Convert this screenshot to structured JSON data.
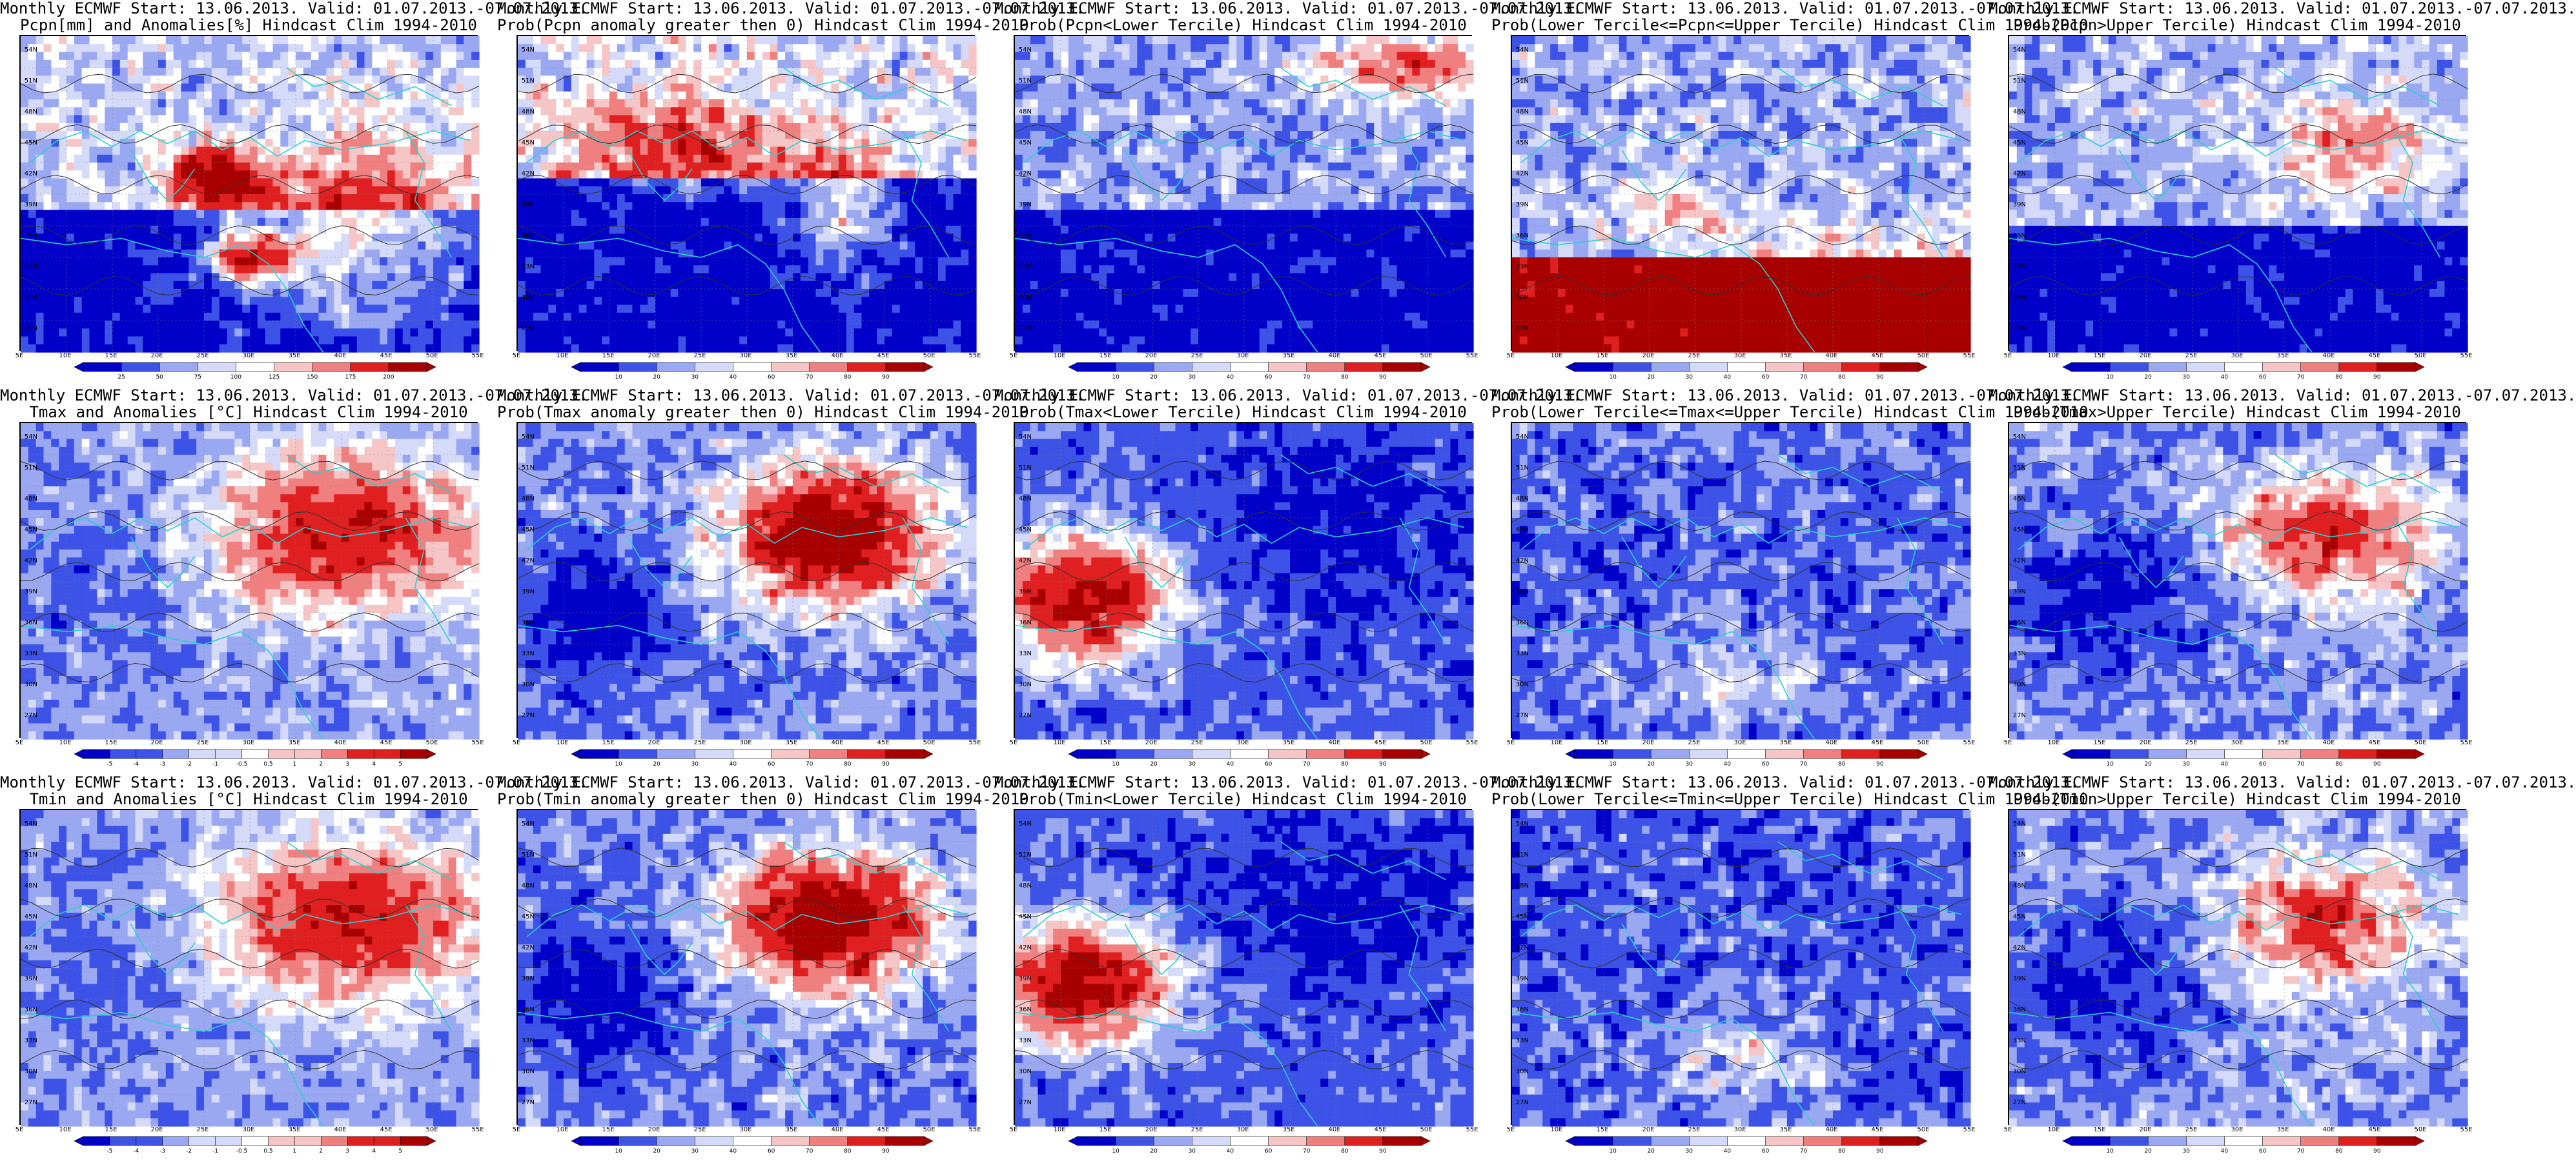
{
  "colors": {
    "blue_dark": "#0000c8",
    "blue_mid": "#3d52e6",
    "blue_light": "#9aa8f2",
    "blue_pale": "#d4daf8",
    "white": "#ffffff",
    "red_pale": "#f6c6c6",
    "red_light": "#f08080",
    "red_mid": "#e02020",
    "red_dark": "#a80000",
    "coast": "#29d0d0",
    "contour": "#303030"
  },
  "axes": {
    "lat_labels": [
      "54N",
      "51N",
      "48N",
      "45N",
      "42N",
      "39N",
      "36N",
      "33N",
      "30N",
      "27N"
    ],
    "lon_labels": [
      "5E",
      "10E",
      "15E",
      "20E",
      "25E",
      "30E",
      "35E",
      "40E",
      "45E",
      "50E",
      "55E"
    ]
  },
  "colorbars": {
    "pcpn_anom": [
      "25",
      "50",
      "75",
      "100",
      "125",
      "150",
      "175",
      "200"
    ],
    "temp_anom": [
      "-5",
      "-4",
      "-3",
      "-2",
      "-1",
      "-0.5",
      "0.5",
      "1",
      "2",
      "3",
      "4",
      "5"
    ],
    "prob": [
      "10",
      "20",
      "30",
      "40",
      "60",
      "70",
      "80",
      "90"
    ]
  },
  "panels": [
    {
      "id": "r1c1",
      "title1": "Monthly ECMWF Start: 13.06.2013. Valid: 01.07.2013.-07.07.2013.",
      "title2": "Pcpn[mm] and Anomalies[%] Hindcast Clim 1994-2010",
      "cbar": "pcpn_anom",
      "style": "pcpn_anom"
    },
    {
      "id": "r1c2",
      "title1": "Monthly ECMWF Start: 13.06.2013. Valid: 01.07.2013.-07.07.2013.",
      "title2": "Prob(Pcpn anomaly greater then 0) Hindcast Clim 1994-2010",
      "cbar": "prob",
      "style": "pcpn_pos"
    },
    {
      "id": "r1c3",
      "title1": "Monthly ECMWF Start: 13.06.2013. Valid: 01.07.2013.-07.07.2013.",
      "title2": "Prob(Pcpn<Lower Tercile) Hindcast Clim 1994-2010",
      "cbar": "prob",
      "style": "pcpn_low"
    },
    {
      "id": "r1c4",
      "title1": "Monthly ECMWF Start: 13.06.2013. Valid: 01.07.2013.-07.07.2013.",
      "title2": "Prob(Lower Tercile<=Pcpn<=Upper Tercile) Hindcast Clim 1994-2010",
      "cbar": "prob",
      "style": "pcpn_mid"
    },
    {
      "id": "r1c5",
      "title1": "Monthly ECMWF Start: 13.06.2013. Valid: 01.07.2013.-07.07.2013.",
      "title2": "Prob(Pcpn>Upper Tercile) Hindcast Clim 1994-2010",
      "cbar": "prob",
      "style": "pcpn_up"
    },
    {
      "id": "r2c1",
      "title1": "Monthly ECMWF Start: 13.06.2013. Valid: 01.07.2013.-07.07.2013.",
      "title2": "Tmax and Anomalies [°C] Hindcast Clim 1994-2010",
      "cbar": "temp_anom",
      "style": "t_anom"
    },
    {
      "id": "r2c2",
      "title1": "Monthly ECMWF Start: 13.06.2013. Valid: 01.07.2013.-07.07.2013.",
      "title2": "Prob(Tmax anomaly greater then 0) Hindcast Clim 1994-2010",
      "cbar": "prob",
      "style": "t_pos"
    },
    {
      "id": "r2c3",
      "title1": "Monthly ECMWF Start: 13.06.2013. Valid: 01.07.2013.-07.07.2013.",
      "title2": "Prob(Tmax<Lower Tercile) Hindcast Clim 1994-2010",
      "cbar": "prob",
      "style": "t_low"
    },
    {
      "id": "r2c4",
      "title1": "Monthly ECMWF Start: 13.06.2013. Valid: 01.07.2013.-07.07.2013.",
      "title2": "Prob(Lower Tercile<=Tmax<=Upper Tercile) Hindcast Clim 1994-2010",
      "cbar": "prob",
      "style": "t_mid"
    },
    {
      "id": "r2c5",
      "title1": "Monthly ECMWF Start: 13.06.2013. Valid: 01.07.2013.-07.07.2013.",
      "title2": "Prob(Tmax>Upper Tercile) Hindcast Clim 1994-2010",
      "cbar": "prob",
      "style": "t_up"
    },
    {
      "id": "r3c1",
      "title1": "Monthly ECMWF Start: 13.06.2013. Valid: 01.07.2013.-07.07.2013.",
      "title2": "Tmin and Anomalies [°C] Hindcast Clim 1994-2010",
      "cbar": "temp_anom",
      "style": "t_anom"
    },
    {
      "id": "r3c2",
      "title1": "Monthly ECMWF Start: 13.06.2013. Valid: 01.07.2013.-07.07.2013.",
      "title2": "Prob(Tmin anomaly greater then 0) Hindcast Clim 1994-2010",
      "cbar": "prob",
      "style": "t_pos"
    },
    {
      "id": "r3c3",
      "title1": "Monthly ECMWF Start: 13.06.2013. Valid: 01.07.2013.-07.07.2013.",
      "title2": "Prob(Tmin<Lower Tercile) Hindcast Clim 1994-2010",
      "cbar": "prob",
      "style": "t_low"
    },
    {
      "id": "r3c4",
      "title1": "Monthly ECMWF Start: 13.06.2013. Valid: 01.07.2013.-07.07.2013.",
      "title2": "Prob(Lower Tercile<=Tmin<=Upper Tercile) Hindcast Clim 1994-2010",
      "cbar": "prob",
      "style": "t_mid"
    },
    {
      "id": "r3c5",
      "title1": "Monthly ECMWF Start: 13.06.2013. Valid: 01.07.2013.-07.07.2013.",
      "title2": "Prob(Tmin>Upper Tercile) Hindcast Clim 1994-2010",
      "cbar": "prob",
      "style": "t_up"
    }
  ]
}
